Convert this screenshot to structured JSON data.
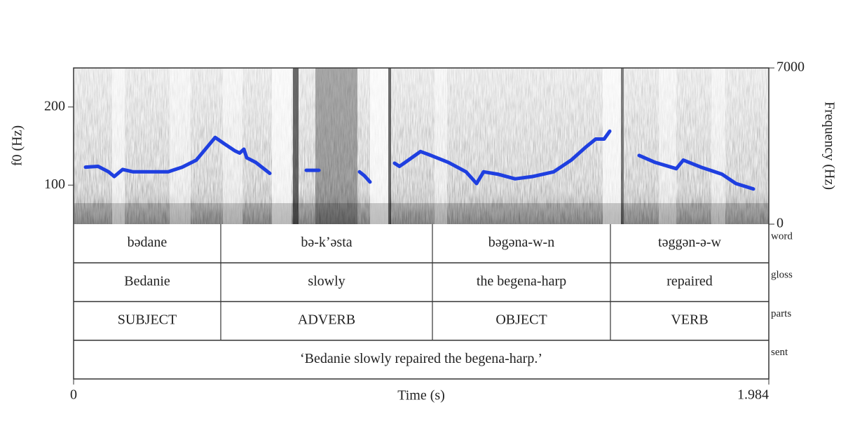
{
  "chart_data": {
    "type": "line",
    "x_label": "Time (s)",
    "y_label": "f0 (Hz)",
    "y2_label": "Frequency (Hz)",
    "xlim": [
      0,
      1.984
    ],
    "xticks": [
      0,
      1.984
    ],
    "ylim": [
      50,
      250
    ],
    "yticks": [
      100,
      200
    ],
    "y2lim": [
      0,
      7000
    ],
    "y2ticks": [
      0,
      7000
    ],
    "x": [
      0.034,
      0.07,
      0.1,
      0.116,
      0.14,
      0.17,
      0.27,
      0.31,
      0.35,
      0.38,
      0.404,
      0.43,
      0.46,
      0.474,
      0.486,
      0.494,
      0.52,
      0.56,
      0.61,
      0.664,
      0.7,
      0.76,
      0.816,
      0.83,
      0.846,
      0.88,
      0.916,
      0.93,
      0.946,
      0.99,
      1.02,
      1.07,
      1.12,
      1.15,
      1.17,
      1.21,
      1.26,
      1.31,
      1.37,
      1.42,
      1.46,
      1.49,
      1.514,
      1.53,
      1.57,
      1.614,
      1.66,
      1.72,
      1.74,
      1.79,
      1.85,
      1.89,
      1.94
    ],
    "series": [
      {
        "name": "f0",
        "color": "#1f3fe0",
        "values": [
          123,
          124,
          117,
          111,
          120,
          117,
          117,
          123,
          132,
          148,
          161,
          153,
          144,
          141,
          146,
          135,
          129,
          115,
          null,
          119,
          119,
          null,
          117,
          112,
          104,
          null,
          128,
          124,
          129,
          143,
          138,
          129,
          117,
          102,
          117,
          114,
          108,
          111,
          117,
          132,
          148,
          159,
          159,
          169,
          null,
          138,
          129,
          121,
          132,
          123,
          114,
          102,
          95
        ]
      }
    ],
    "tiers": [
      {
        "name": "word",
        "boundaries": [
          0.42,
          1.024,
          1.532
        ],
        "labels": [
          "bədane",
          "bə-kʼəsta",
          "bəgəna-w-n",
          "təggən-ə-w"
        ]
      },
      {
        "name": "gloss",
        "boundaries": [
          0.42,
          1.024,
          1.532
        ],
        "labels": [
          "Bedanie",
          "slowly",
          "the begena-harp",
          "repaired"
        ]
      },
      {
        "name": "parts",
        "boundaries": [
          0.42,
          1.024,
          1.532
        ],
        "labels": [
          "SUBJECT",
          "ADVERB",
          "OBJECT",
          "VERB"
        ]
      },
      {
        "name": "sent",
        "labels": [
          "‘Bedanie slowly repaired the begena-harp.’"
        ]
      }
    ]
  }
}
